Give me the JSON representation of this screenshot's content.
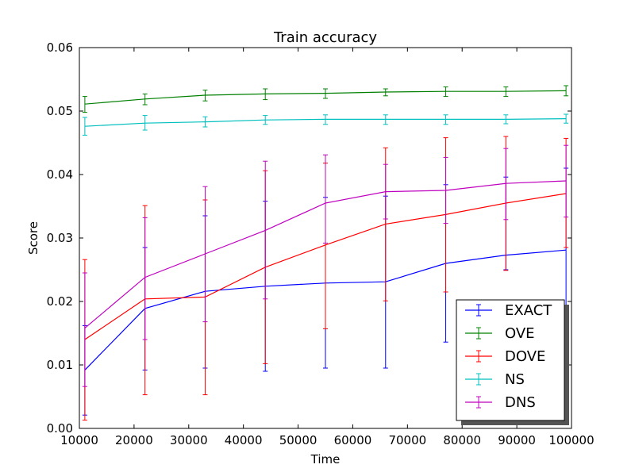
{
  "chart_data": {
    "type": "line",
    "title": "Train accuracy",
    "xlabel": "Time",
    "ylabel": "Score",
    "xlim": [
      10000,
      100000
    ],
    "ylim": [
      0.0,
      0.06
    ],
    "x_ticks": [
      "10000",
      "20000",
      "30000",
      "40000",
      "50000",
      "60000",
      "70000",
      "80000",
      "90000",
      "100000"
    ],
    "y_ticks": [
      "0.00",
      "0.01",
      "0.02",
      "0.03",
      "0.04",
      "0.05",
      "0.06"
    ],
    "grid": false,
    "legend_position": "lower-right",
    "x": [
      11000,
      22000,
      33000,
      44000,
      55000,
      66000,
      77000,
      88000,
      99000
    ],
    "series": [
      {
        "name": "EXACT",
        "color": "#0000ff",
        "values": [
          0.0092,
          0.0189,
          0.0216,
          0.0224,
          0.0229,
          0.0231,
          0.026,
          0.0273,
          0.0281
        ],
        "err_low": [
          0.0021,
          0.0092,
          0.0095,
          0.009,
          0.0095,
          0.0095,
          0.0136,
          0.025,
          0.0152
        ],
        "err_high": [
          0.0162,
          0.0285,
          0.0335,
          0.0358,
          0.0364,
          0.0366,
          0.0384,
          0.0396,
          0.041
        ]
      },
      {
        "name": "OVE",
        "color": "#008000",
        "values": [
          0.0511,
          0.0519,
          0.0525,
          0.0527,
          0.0528,
          0.053,
          0.0531,
          0.0531,
          0.0532
        ],
        "err_low": [
          0.0498,
          0.051,
          0.0516,
          0.0518,
          0.052,
          0.0524,
          0.0523,
          0.0523,
          0.0524
        ],
        "err_high": [
          0.0523,
          0.0527,
          0.0533,
          0.0535,
          0.0535,
          0.0535,
          0.0538,
          0.0538,
          0.054
        ]
      },
      {
        "name": "DOVE",
        "color": "#ff0000",
        "values": [
          0.014,
          0.0204,
          0.0207,
          0.0254,
          0.0289,
          0.0322,
          0.0337,
          0.0355,
          0.037
        ],
        "err_low": [
          0.0013,
          0.0053,
          0.0053,
          0.0102,
          0.0157,
          0.0201,
          0.0215,
          0.0249,
          0.0285
        ],
        "err_high": [
          0.0266,
          0.0351,
          0.036,
          0.0406,
          0.0418,
          0.0442,
          0.0458,
          0.046,
          0.0457
        ]
      },
      {
        "name": "NS",
        "color": "#00bfbf",
        "values": [
          0.0476,
          0.0481,
          0.0483,
          0.0486,
          0.0487,
          0.0487,
          0.0487,
          0.0487,
          0.0488
        ],
        "err_low": [
          0.0462,
          0.047,
          0.0475,
          0.0479,
          0.0479,
          0.0479,
          0.0479,
          0.048,
          0.0481
        ],
        "err_high": [
          0.049,
          0.0493,
          0.0491,
          0.0493,
          0.0494,
          0.0494,
          0.0494,
          0.0494,
          0.0495
        ]
      },
      {
        "name": "DNS",
        "color": "#bf00bf",
        "values": [
          0.0158,
          0.0238,
          0.0275,
          0.0312,
          0.0355,
          0.0373,
          0.0375,
          0.0386,
          0.039
        ],
        "err_low": [
          0.0066,
          0.014,
          0.0168,
          0.0204,
          0.0292,
          0.033,
          0.0323,
          0.0329,
          0.0333
        ],
        "err_high": [
          0.0245,
          0.0332,
          0.0381,
          0.0421,
          0.0431,
          0.0416,
          0.0427,
          0.0441,
          0.0446
        ]
      }
    ]
  }
}
